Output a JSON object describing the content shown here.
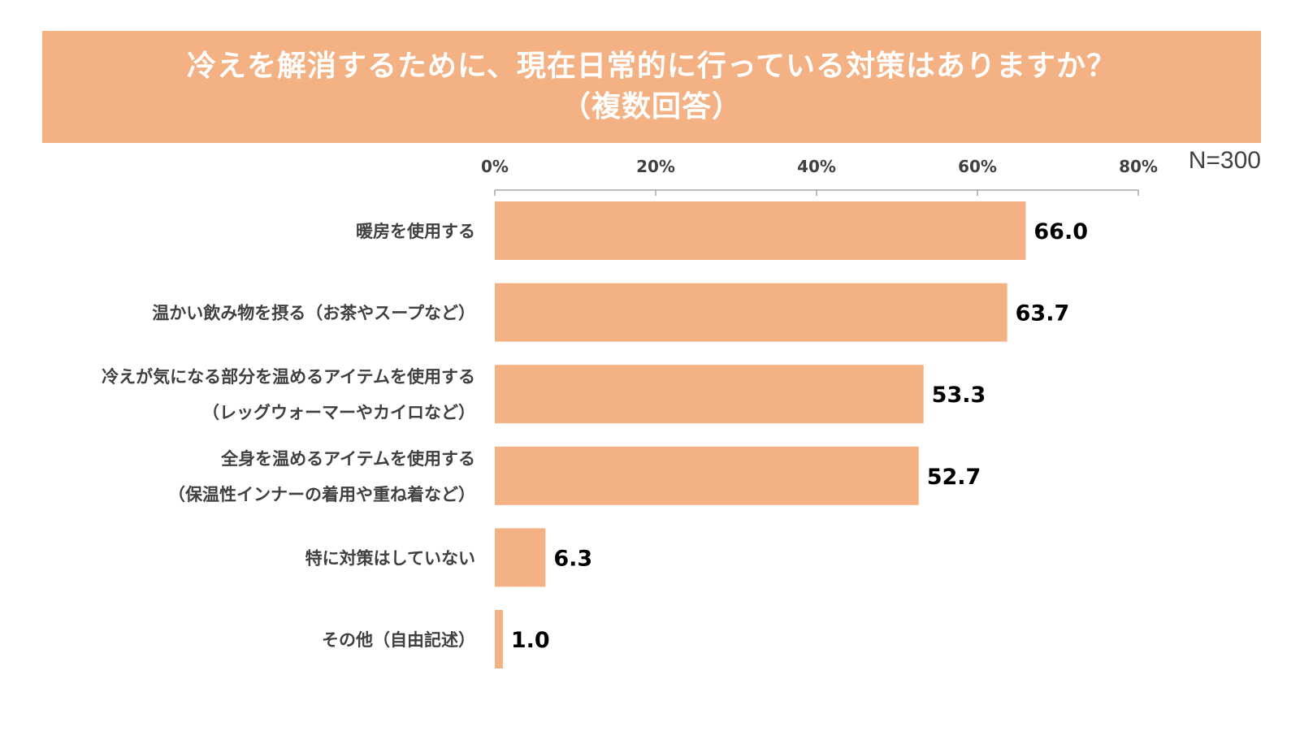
{
  "title": {
    "line1": "冷えを解消するために、現在日常的に行っている対策はありますか？",
    "line2": "（複数回答）"
  },
  "sample_size_label": "N=300",
  "colors": {
    "bar": "#f4b183",
    "banner": "#f4b183",
    "axis": "#a6a6a6",
    "label": "#404040",
    "value": "#000000"
  },
  "chart_data": {
    "type": "bar",
    "orientation": "horizontal",
    "title": "冷えを解消するために、現在日常的に行っている対策はありますか？（複数回答）",
    "xlim": [
      0,
      80
    ],
    "ticks": [
      0,
      20,
      40,
      60,
      80
    ],
    "tick_labels": [
      "0%",
      "20%",
      "40%",
      "60%",
      "80%"
    ],
    "categories": [
      [
        "暖房を使用する"
      ],
      [
        "温かい飲み物を摂る（お茶やスープなど）"
      ],
      [
        "冷えが気になる部分を温めるアイテムを使用する",
        "（レッグウォーマーやカイロなど）"
      ],
      [
        "全身を温めるアイテムを使用する",
        "（保温性インナーの着用や重ね着など）"
      ],
      [
        "特に対策はしていない"
      ],
      [
        "その他（自由記述）"
      ]
    ],
    "values": [
      66.0,
      63.7,
      53.3,
      52.7,
      6.3,
      1.0
    ],
    "value_labels": [
      "66.0",
      "63.7",
      "53.3",
      "52.7",
      "6.3",
      "1.0"
    ],
    "axis_position": "top",
    "grid": false,
    "legend": "none"
  }
}
